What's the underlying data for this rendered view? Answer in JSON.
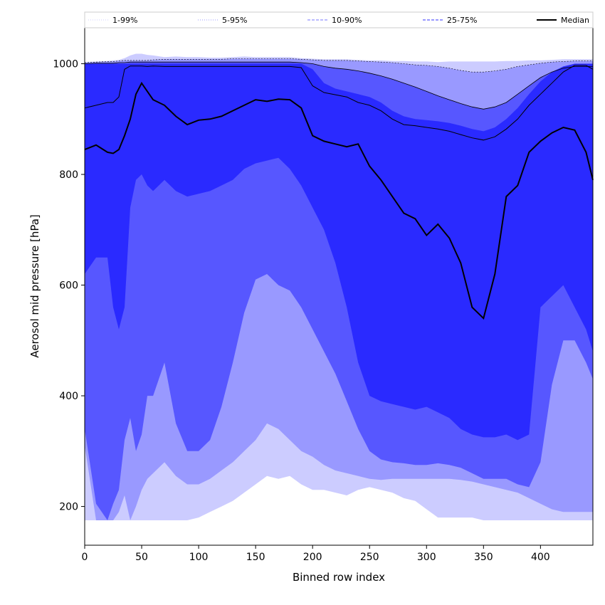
{
  "chart_data": {
    "type": "area",
    "title": "",
    "xlabel": "Binned row index",
    "ylabel": "Aerosol mid pressure [hPa]",
    "xlim": [
      0,
      446
    ],
    "ylim": [
      130,
      1065
    ],
    "xticks": [
      0,
      50,
      100,
      150,
      200,
      250,
      300,
      350,
      400
    ],
    "yticks": [
      200,
      400,
      600,
      800,
      1000
    ],
    "grid": false,
    "legend_position": "top",
    "colors": {
      "band_1_99": "#ccccff",
      "band_5_95": "#9999ff",
      "band_10_90": "#5757ff",
      "band_25_75": "#2a2aff",
      "median": "#000000",
      "upper_outline": "#000000"
    },
    "legend": [
      {
        "key": "p1_99",
        "label": "1-99%",
        "style": "dotted",
        "color": "#ccccff"
      },
      {
        "key": "p5_95",
        "label": "5-95%",
        "style": "dotted",
        "color": "#9999ff"
      },
      {
        "key": "p10_90",
        "label": "10-90%",
        "style": "dashed",
        "color": "#7777ff"
      },
      {
        "key": "p25_75",
        "label": "25-75%",
        "style": "dashed",
        "color": "#3333ff"
      },
      {
        "key": "median",
        "label": "Median",
        "style": "solid",
        "color": "#000000"
      }
    ],
    "x": [
      0,
      10,
      20,
      25,
      30,
      35,
      40,
      45,
      50,
      55,
      60,
      70,
      80,
      90,
      100,
      110,
      120,
      130,
      140,
      150,
      160,
      170,
      180,
      190,
      200,
      210,
      220,
      230,
      240,
      250,
      260,
      270,
      280,
      290,
      300,
      310,
      320,
      330,
      340,
      350,
      360,
      370,
      380,
      390,
      400,
      410,
      420,
      430,
      440,
      446
    ],
    "series": [
      {
        "name": "1-99%",
        "band": "outer",
        "upper": [
          1003,
          1004,
          1005,
          1006,
          1007,
          1010,
          1015,
          1018,
          1018,
          1016,
          1015,
          1012,
          1013,
          1012,
          1012,
          1011,
          1011,
          1012,
          1013,
          1012,
          1012,
          1012,
          1012,
          1010,
          1009,
          1008,
          1008,
          1008,
          1007,
          1006,
          1006,
          1005,
          1005,
          1004,
          1004,
          1003,
          1004,
          1004,
          1004,
          1004,
          1004,
          1005,
          1005,
          1006,
          1006,
          1007,
          1008,
          1008,
          1008,
          1008
        ],
        "lower": [
          175,
          175,
          175,
          175,
          175,
          175,
          175,
          175,
          175,
          175,
          175,
          175,
          175,
          175,
          180,
          190,
          200,
          210,
          225,
          240,
          255,
          250,
          255,
          240,
          230,
          230,
          225,
          220,
          230,
          235,
          230,
          225,
          215,
          210,
          195,
          180,
          180,
          180,
          180,
          175,
          175,
          175,
          175,
          175,
          175,
          175,
          175,
          175,
          175,
          175
        ]
      },
      {
        "name": "5-95%",
        "band": "second",
        "upper": [
          1002,
          1003,
          1004,
          1004,
          1005,
          1006,
          1006,
          1006,
          1006,
          1006,
          1007,
          1008,
          1008,
          1008,
          1008,
          1008,
          1008,
          1009,
          1009,
          1009,
          1009,
          1009,
          1009,
          1008,
          1007,
          1006,
          1006,
          1006,
          1005,
          1004,
          1003,
          1002,
          1000,
          998,
          997,
          995,
          992,
          988,
          985,
          985,
          987,
          990,
          995,
          998,
          1001,
          1003,
          1004,
          1005,
          1005,
          1005
        ],
        "lower": [
          310,
          175,
          175,
          175,
          190,
          220,
          175,
          200,
          230,
          250,
          260,
          280,
          255,
          240,
          240,
          250,
          265,
          280,
          300,
          320,
          350,
          340,
          320,
          300,
          290,
          275,
          265,
          260,
          255,
          250,
          248,
          250,
          250,
          250,
          250,
          250,
          250,
          248,
          245,
          240,
          235,
          230,
          225,
          215,
          205,
          195,
          190,
          190,
          190,
          190
        ]
      },
      {
        "name": "10-90%",
        "band": "third",
        "upper": [
          1000,
          1001,
          1001,
          1001,
          1002,
          1002,
          1003,
          1003,
          1003,
          1003,
          1003,
          1003,
          1003,
          1003,
          1003,
          1003,
          1003,
          1003,
          1003,
          1003,
          1003,
          1003,
          1003,
          1002,
          1000,
          995,
          992,
          990,
          987,
          983,
          978,
          972,
          965,
          958,
          950,
          942,
          935,
          928,
          922,
          918,
          922,
          930,
          945,
          960,
          975,
          985,
          992,
          995,
          995,
          995
        ],
        "lower": [
          340,
          205,
          175,
          205,
          230,
          320,
          360,
          300,
          330,
          400,
          400,
          460,
          350,
          300,
          300,
          320,
          380,
          460,
          550,
          610,
          620,
          600,
          590,
          560,
          520,
          480,
          440,
          390,
          340,
          300,
          285,
          280,
          278,
          275,
          275,
          278,
          275,
          270,
          260,
          250,
          250,
          250,
          240,
          235,
          280,
          420,
          500,
          500,
          460,
          430
        ]
      },
      {
        "name": "25-75%",
        "band": "inner",
        "upper": [
          1000,
          1000,
          1000,
          1000,
          1000,
          1000,
          1000,
          1000,
          1000,
          1000,
          1000,
          1000,
          1000,
          1000,
          1000,
          1000,
          1000,
          1000,
          1000,
          1000,
          1000,
          1000,
          1000,
          1000,
          990,
          965,
          955,
          950,
          945,
          940,
          930,
          915,
          905,
          900,
          898,
          896,
          893,
          888,
          882,
          878,
          885,
          900,
          920,
          945,
          968,
          985,
          995,
          1000,
          1000,
          1000
        ],
        "lower": [
          620,
          650,
          650,
          560,
          520,
          560,
          740,
          790,
          800,
          780,
          770,
          790,
          770,
          760,
          765,
          770,
          780,
          790,
          810,
          820,
          825,
          830,
          810,
          780,
          740,
          700,
          640,
          560,
          460,
          400,
          390,
          385,
          380,
          375,
          380,
          370,
          360,
          340,
          330,
          325,
          325,
          330,
          320,
          330,
          560,
          580,
          600,
          560,
          520,
          480
        ]
      },
      {
        "name": "25-75% upper edge",
        "band": "edge",
        "upper": [
          920,
          925,
          930,
          930,
          940,
          990,
          996,
          996,
          996,
          995,
          996,
          995,
          995,
          995,
          995,
          995,
          995,
          995,
          995,
          995,
          995,
          995,
          995,
          993,
          960,
          948,
          944,
          940,
          930,
          925,
          915,
          900,
          890,
          888,
          885,
          882,
          878,
          872,
          866,
          862,
          868,
          882,
          900,
          925,
          945,
          965,
          985,
          997,
          997,
          990
        ]
      },
      {
        "name": "Median",
        "band": "median",
        "values": [
          845,
          853,
          840,
          838,
          845,
          870,
          900,
          945,
          965,
          950,
          935,
          925,
          905,
          890,
          898,
          900,
          905,
          915,
          925,
          935,
          932,
          936,
          935,
          920,
          870,
          860,
          855,
          850,
          855,
          815,
          790,
          760,
          730,
          720,
          690,
          710,
          685,
          640,
          560,
          540,
          620,
          760,
          780,
          840,
          860,
          875,
          885,
          880,
          840,
          790
        ]
      }
    ]
  }
}
